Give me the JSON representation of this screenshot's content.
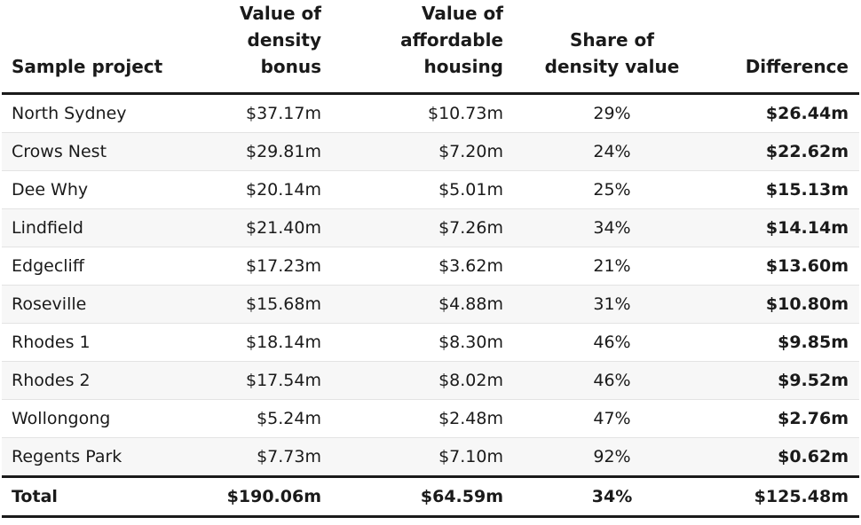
{
  "columns": {
    "project": "Sample project",
    "density_bonus": [
      "Value of",
      "density bonus"
    ],
    "affordable_housing": [
      "Value of",
      "affordable",
      "housing"
    ],
    "share": [
      "Share of",
      "density value"
    ],
    "difference": "Difference"
  },
  "rows": [
    {
      "project": "North Sydney",
      "density_bonus": "$37.17m",
      "affordable_housing": "$10.73m",
      "share": "29%",
      "difference": "$26.44m"
    },
    {
      "project": "Crows Nest",
      "density_bonus": "$29.81m",
      "affordable_housing": "$7.20m",
      "share": "24%",
      "difference": "$22.62m"
    },
    {
      "project": "Dee Why",
      "density_bonus": "$20.14m",
      "affordable_housing": "$5.01m",
      "share": "25%",
      "difference": "$15.13m"
    },
    {
      "project": "Lindfield",
      "density_bonus": "$21.40m",
      "affordable_housing": "$7.26m",
      "share": "34%",
      "difference": "$14.14m"
    },
    {
      "project": "Edgecliff",
      "density_bonus": "$17.23m",
      "affordable_housing": "$3.62m",
      "share": "21%",
      "difference": "$13.60m"
    },
    {
      "project": "Roseville",
      "density_bonus": "$15.68m",
      "affordable_housing": "$4.88m",
      "share": "31%",
      "difference": "$10.80m"
    },
    {
      "project": "Rhodes 1",
      "density_bonus": "$18.14m",
      "affordable_housing": "$8.30m",
      "share": "46%",
      "difference": "$9.85m"
    },
    {
      "project": "Rhodes 2",
      "density_bonus": "$17.54m",
      "affordable_housing": "$8.02m",
      "share": "46%",
      "difference": "$9.52m"
    },
    {
      "project": "Wollongong",
      "density_bonus": "$5.24m",
      "affordable_housing": "$2.48m",
      "share": "47%",
      "difference": "$2.76m"
    },
    {
      "project": "Regents Park",
      "density_bonus": "$7.73m",
      "affordable_housing": "$7.10m",
      "share": "92%",
      "difference": "$0.62m"
    }
  ],
  "total": {
    "project": "Total",
    "density_bonus": "$190.06m",
    "affordable_housing": "$64.59m",
    "share": "34%",
    "difference": "$125.48m"
  }
}
